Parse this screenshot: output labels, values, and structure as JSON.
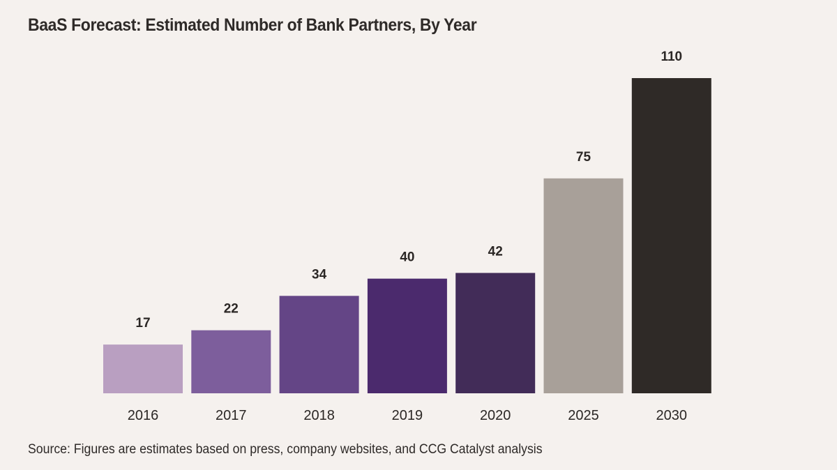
{
  "title": "BaaS Forecast: Estimated Number of Bank Partners, By Year",
  "source": "Source: Figures are estimates based on press, company websites, and CCG Catalyst analysis",
  "chart_data": {
    "type": "bar",
    "title": "BaaS Forecast: Estimated Number of Bank Partners, By Year",
    "xlabel": "",
    "ylabel": "",
    "categories": [
      "2016",
      "2017",
      "2018",
      "2019",
      "2020",
      "2025",
      "2030"
    ],
    "values": [
      17,
      22,
      34,
      40,
      42,
      75,
      110
    ],
    "data_labels": [
      "17",
      "22",
      "34",
      "40",
      "42",
      "75",
      "110"
    ],
    "colors": [
      "#b99fc1",
      "#7d5e9c",
      "#644586",
      "#4b2a6d",
      "#422c58",
      "#a8a099",
      "#2f2a27"
    ],
    "ylim": [
      0,
      110
    ],
    "grid": false,
    "legend": "none"
  }
}
